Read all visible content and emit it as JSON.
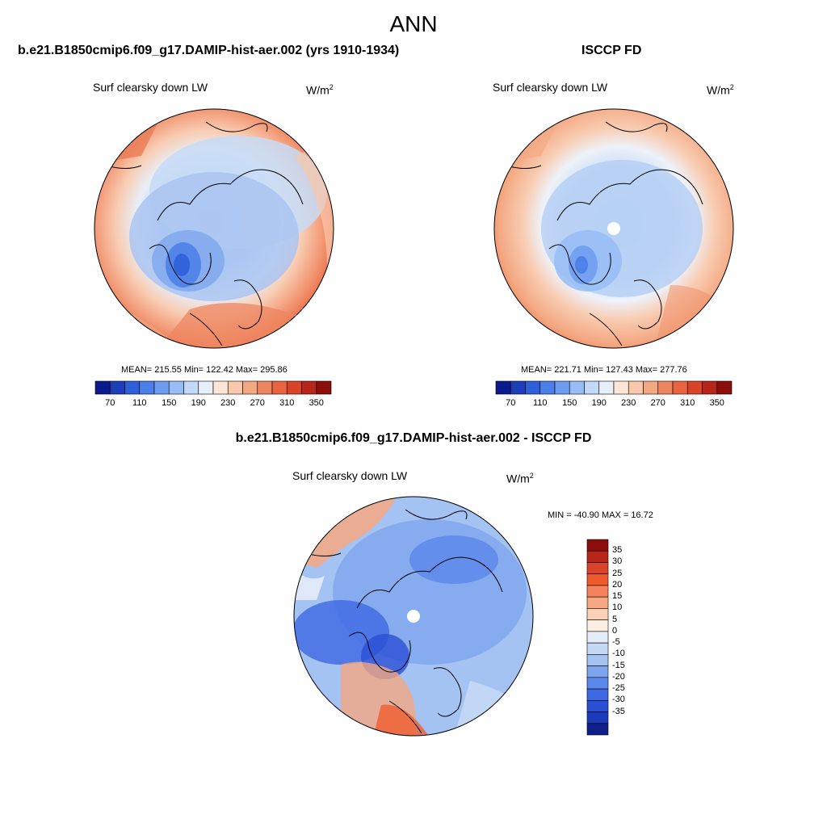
{
  "season": "ANN",
  "panels": {
    "model": {
      "header": "b.e21.B1850cmip6.f09_g17.DAMIP-hist-aer.002 (yrs 1910-1934)",
      "variable": "Surf clearsky down LW",
      "units_base": "W/m",
      "units_exp": "2",
      "stats": "MEAN= 215.55  Min= 122.42  Max= 295.86"
    },
    "obs": {
      "header": "ISCCP FD",
      "variable": "Surf clearsky down LW",
      "units_base": "W/m",
      "units_exp": "2",
      "stats": "MEAN= 221.71  Min= 127.43  Max= 277.76"
    },
    "diff": {
      "header": "b.e21.B1850cmip6.f09_g17.DAMIP-hist-aer.002 - ISCCP FD",
      "variable": "Surf clearsky down LW",
      "units_base": "W/m",
      "units_exp": "2",
      "stats": "MIN = -40.90 MAX =  16.72"
    }
  },
  "colorbar_abs": {
    "colors": [
      "#0a1a8c",
      "#1f3fb8",
      "#2f5fd8",
      "#4a7ee8",
      "#6d9cf0",
      "#97bdf4",
      "#c2d8f7",
      "#e6eef9",
      "#fde6d6",
      "#f8c8ab",
      "#f4a882",
      "#ee8560",
      "#e8643f",
      "#d9432a",
      "#b8261a",
      "#8a0f0c"
    ],
    "tick_labels": [
      "70",
      "110",
      "150",
      "190",
      "230",
      "270",
      "310",
      "350"
    ]
  },
  "colorbar_diff": {
    "colors": [
      "#8a0f0c",
      "#b8261a",
      "#d9432a",
      "#f05a2a",
      "#f4825a",
      "#f7a882",
      "#fbd2b8",
      "#fdeee4",
      "#e4ecf8",
      "#c5d8f5",
      "#a4c2f2",
      "#7ea6ee",
      "#5a87ea",
      "#3d68e4",
      "#2a4fd4",
      "#1c3bbb",
      "#0e1f8a"
    ],
    "tick_labels": [
      "35",
      "30",
      "25",
      "20",
      "15",
      "10",
      "5",
      "0",
      "-5",
      "-10",
      "-15",
      "-20",
      "-25",
      "-30",
      "-35"
    ]
  }
}
